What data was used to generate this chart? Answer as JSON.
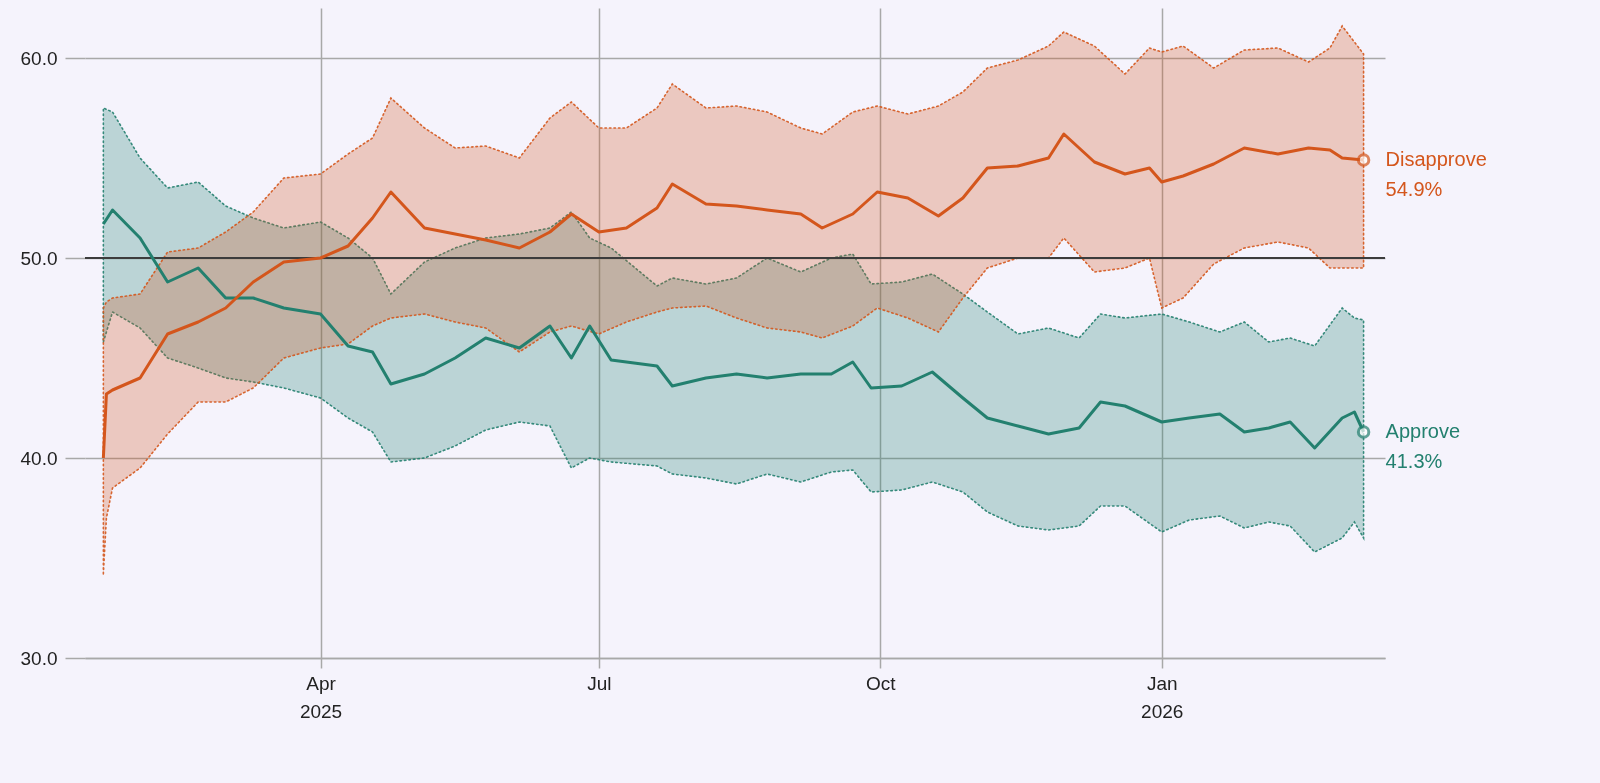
{
  "chart_data": {
    "type": "line",
    "xlim": [
      "2025-01-14",
      "2026-03-15"
    ],
    "xticks": [
      {
        "value": "2025-04-01",
        "label": "Apr 2025"
      },
      {
        "value": "2025-07-01",
        "label": "Jul"
      },
      {
        "value": "2025-10-01",
        "label": "Oct"
      },
      {
        "value": "2026-01-01",
        "label": "Jan 2026"
      }
    ],
    "ylim": [
      30,
      62.5
    ],
    "yticks": [
      {
        "value": 30,
        "label": "30.0"
      },
      {
        "value": 40,
        "label": "40.0"
      },
      {
        "value": 50,
        "label": "50.0"
      },
      {
        "value": 60,
        "label": "60.0"
      }
    ],
    "grid": true,
    "ref_lines": [
      {
        "axis": "y",
        "value": 50,
        "color": "#3c3c3c"
      }
    ],
    "annotations": [
      {
        "text": "54.9%",
        "x": "2026-03-08",
        "y": 54.9
      },
      {
        "text": "41.3%",
        "x": "2026-03-08",
        "y": 41.3
      }
    ],
    "series": [
      {
        "name": "Approve",
        "color": "#23806f",
        "x": [
          "2025-01-20",
          "2025-01-23",
          "2025-02-01",
          "2025-02-10",
          "2025-02-20",
          "2025-03-01",
          "2025-03-10",
          "2025-03-20",
          "2025-04-01",
          "2025-04-10",
          "2025-04-18",
          "2025-04-24",
          "2025-05-05",
          "2025-05-15",
          "2025-05-25",
          "2025-06-05",
          "2025-06-15",
          "2025-06-22",
          "2025-06-28",
          "2025-07-05",
          "2025-07-20",
          "2025-07-25",
          "2025-08-05",
          "2025-08-15",
          "2025-08-25",
          "2025-09-05",
          "2025-09-15",
          "2025-09-22",
          "2025-09-28",
          "2025-10-08",
          "2025-10-18",
          "2025-10-28",
          "2025-11-05",
          "2025-11-15",
          "2025-11-25",
          "2025-12-05",
          "2025-12-12",
          "2025-12-20",
          "2026-01-01",
          "2026-01-10",
          "2026-01-20",
          "2026-01-28",
          "2026-02-05",
          "2026-02-12",
          "2026-02-20",
          "2026-03-01",
          "2026-03-05",
          "2026-03-08"
        ],
        "values": [
          51.7,
          52.4,
          51.0,
          48.8,
          49.5,
          48.0,
          48.0,
          47.5,
          47.2,
          45.6,
          45.3,
          43.7,
          44.2,
          45.0,
          46.0,
          45.5,
          46.6,
          45.0,
          46.6,
          44.9,
          44.6,
          43.6,
          44.0,
          44.2,
          44.0,
          44.2,
          44.2,
          44.8,
          43.5,
          43.6,
          44.3,
          43.0,
          42.0,
          41.6,
          41.2,
          41.5,
          42.8,
          42.6,
          41.8,
          42.0,
          42.2,
          41.3,
          41.5,
          41.8,
          40.5,
          42.0,
          42.3,
          41.3
        ],
        "upper": [
          57.5,
          57.3,
          55.0,
          53.5,
          53.8,
          52.6,
          52.0,
          51.5,
          51.8,
          51.0,
          50.0,
          48.2,
          49.8,
          50.5,
          51.0,
          51.2,
          51.5,
          52.3,
          51.0,
          50.5,
          48.6,
          49.0,
          48.7,
          49.0,
          50.0,
          49.3,
          50.0,
          50.2,
          48.7,
          48.8,
          49.2,
          48.2,
          47.3,
          46.2,
          46.5,
          46.0,
          47.2,
          47.0,
          47.2,
          46.8,
          46.3,
          46.8,
          45.8,
          46.0,
          45.6,
          47.5,
          47.0,
          46.9
        ],
        "lower": [
          45.8,
          47.3,
          46.5,
          45.0,
          44.5,
          44.0,
          43.8,
          43.5,
          43.0,
          42.0,
          41.3,
          39.8,
          40.0,
          40.6,
          41.4,
          41.8,
          41.6,
          39.5,
          40.0,
          39.8,
          39.6,
          39.2,
          39.0,
          38.7,
          39.2,
          38.8,
          39.3,
          39.4,
          38.3,
          38.4,
          38.8,
          38.3,
          37.3,
          36.6,
          36.4,
          36.6,
          37.6,
          37.6,
          36.3,
          36.9,
          37.1,
          36.5,
          36.8,
          36.6,
          35.3,
          36.0,
          36.8,
          36.0
        ]
      },
      {
        "name": "Disapprove",
        "color": "#d4561c",
        "x": [
          "2025-01-20",
          "2025-01-21",
          "2025-01-23",
          "2025-02-01",
          "2025-02-10",
          "2025-02-20",
          "2025-03-01",
          "2025-03-10",
          "2025-03-20",
          "2025-04-01",
          "2025-04-10",
          "2025-04-18",
          "2025-04-24",
          "2025-05-05",
          "2025-05-15",
          "2025-05-25",
          "2025-06-05",
          "2025-06-15",
          "2025-06-22",
          "2025-07-01",
          "2025-07-10",
          "2025-07-20",
          "2025-07-25",
          "2025-08-05",
          "2025-08-15",
          "2025-08-25",
          "2025-09-05",
          "2025-09-12",
          "2025-09-22",
          "2025-09-30",
          "2025-10-10",
          "2025-10-20",
          "2025-10-28",
          "2025-11-05",
          "2025-11-15",
          "2025-11-25",
          "2025-11-30",
          "2025-12-10",
          "2025-12-20",
          "2025-12-28",
          "2026-01-01",
          "2026-01-08",
          "2026-01-18",
          "2026-01-28",
          "2026-02-08",
          "2026-02-18",
          "2026-02-25",
          "2026-03-01",
          "2026-03-08"
        ],
        "values": [
          40.0,
          43.2,
          43.4,
          44.0,
          46.2,
          46.8,
          47.5,
          48.8,
          49.8,
          50.0,
          50.6,
          52.0,
          53.3,
          51.5,
          51.2,
          50.9,
          50.5,
          51.3,
          52.2,
          51.3,
          51.5,
          52.5,
          53.7,
          52.7,
          52.6,
          52.4,
          52.2,
          51.5,
          52.2,
          53.3,
          53.0,
          52.1,
          53.0,
          54.5,
          54.6,
          55.0,
          56.2,
          54.8,
          54.2,
          54.5,
          53.8,
          54.1,
          54.7,
          55.5,
          55.2,
          55.5,
          55.4,
          55.0,
          54.9
        ],
        "upper": [
          47.5,
          47.8,
          48.0,
          48.2,
          50.3,
          50.5,
          51.3,
          52.3,
          54.0,
          54.2,
          55.2,
          56.0,
          58.0,
          56.5,
          55.5,
          55.6,
          55.0,
          57.0,
          57.8,
          56.5,
          56.5,
          57.5,
          58.7,
          57.5,
          57.6,
          57.3,
          56.5,
          56.2,
          57.3,
          57.6,
          57.2,
          57.6,
          58.3,
          59.5,
          59.9,
          60.6,
          61.3,
          60.6,
          59.2,
          60.5,
          60.3,
          60.6,
          59.5,
          60.4,
          60.5,
          59.8,
          60.5,
          61.6,
          60.2
        ],
        "lower": [
          34.2,
          37.0,
          38.5,
          39.5,
          41.2,
          42.8,
          42.8,
          43.5,
          45.0,
          45.5,
          45.7,
          46.6,
          47.0,
          47.2,
          46.8,
          46.5,
          45.3,
          46.3,
          46.6,
          46.2,
          46.8,
          47.3,
          47.5,
          47.6,
          47.0,
          46.5,
          46.3,
          46.0,
          46.6,
          47.5,
          47.0,
          46.3,
          48.0,
          49.5,
          50.0,
          50.0,
          51.0,
          49.3,
          49.5,
          50.0,
          47.5,
          48.0,
          49.7,
          50.5,
          50.8,
          50.5,
          49.5,
          49.5,
          49.5
        ]
      }
    ]
  }
}
